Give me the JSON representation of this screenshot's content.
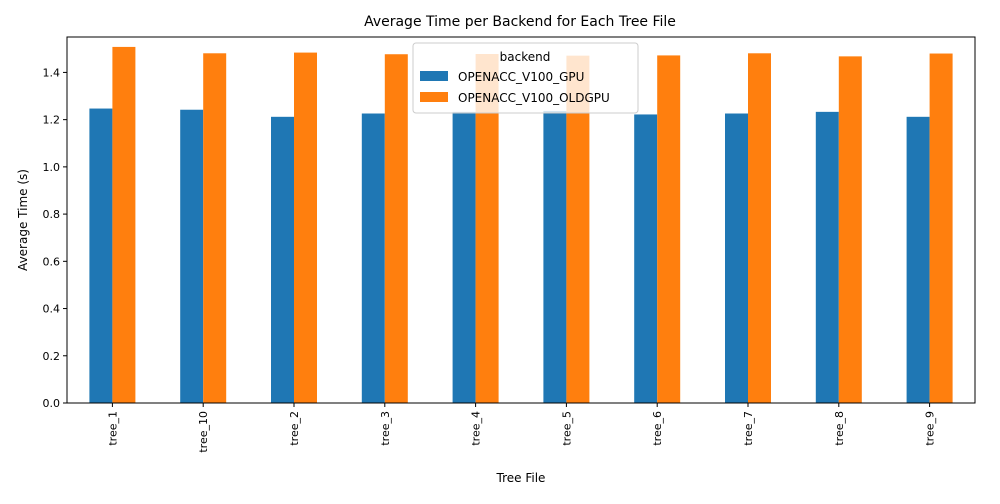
{
  "chart_data": {
    "type": "bar",
    "title": "Average Time per Backend for Each Tree File",
    "xlabel": "Tree File",
    "ylabel": "Average Time (s)",
    "categories": [
      "tree_1",
      "tree_10",
      "tree_2",
      "tree_3",
      "tree_4",
      "tree_5",
      "tree_6",
      "tree_7",
      "tree_8",
      "tree_9"
    ],
    "series": [
      {
        "name": "OPENACC_V100_GPU",
        "color": "#1f77b4",
        "values": [
          1.247,
          1.242,
          1.212,
          1.226,
          1.233,
          1.237,
          1.222,
          1.226,
          1.233,
          1.212
        ]
      },
      {
        "name": "OPENACC_V100_OLDGPU",
        "color": "#ff7f0e",
        "values": [
          1.508,
          1.481,
          1.484,
          1.477,
          1.478,
          1.471,
          1.472,
          1.481,
          1.468,
          1.48
        ]
      }
    ],
    "ylim": [
      0,
      1.55
    ],
    "yticks": [
      "0.0",
      "0.2",
      "0.4",
      "0.6",
      "0.8",
      "1.0",
      "1.2",
      "1.4"
    ],
    "grid": false,
    "legend": {
      "title": "backend",
      "placement": "top-center"
    }
  }
}
